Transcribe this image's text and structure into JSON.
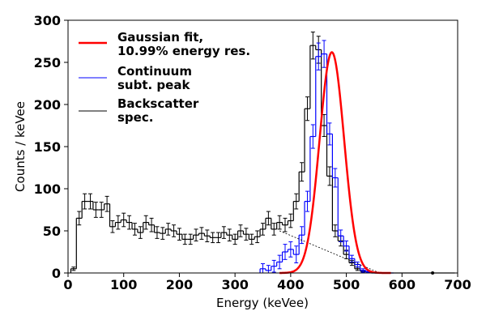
{
  "chart_data": {
    "type": "line",
    "xlabel": "Energy (keVee)",
    "ylabel": "Counts / keVee",
    "xlim": [
      0,
      700
    ],
    "ylim": [
      0,
      300
    ],
    "x_ticks": [
      0,
      100,
      200,
      300,
      400,
      500,
      600,
      700
    ],
    "y_ticks": [
      0,
      50,
      100,
      150,
      200,
      250,
      300
    ],
    "x_tick_labels": [
      "0",
      "100",
      "200",
      "300",
      "400",
      "500",
      "600",
      "700"
    ],
    "y_tick_labels": [
      "0",
      "50",
      "100",
      "150",
      "200",
      "250",
      "300"
    ],
    "grid": false,
    "legend_position": "top-left",
    "series": [
      {
        "name": "Backscatter spec.",
        "style": "step-errorbar",
        "color": "#000000",
        "bin_width": 10,
        "x": [
          10,
          20,
          30,
          40,
          50,
          60,
          70,
          80,
          90,
          100,
          110,
          120,
          130,
          140,
          150,
          160,
          170,
          180,
          190,
          200,
          210,
          220,
          230,
          240,
          250,
          260,
          270,
          280,
          290,
          300,
          310,
          320,
          330,
          340,
          350,
          360,
          370,
          380,
          390,
          400,
          410,
          420,
          430,
          440,
          450,
          460,
          470,
          480,
          490,
          500,
          510,
          520,
          530,
          540,
          550,
          560,
          570,
          580,
          590,
          600,
          610,
          620,
          630,
          640,
          650,
          660,
          670,
          680,
          690
        ],
        "y": [
          5,
          65,
          85,
          85,
          75,
          75,
          82,
          55,
          60,
          63,
          60,
          52,
          48,
          60,
          57,
          48,
          47,
          52,
          50,
          46,
          40,
          40,
          45,
          47,
          44,
          42,
          42,
          48,
          45,
          40,
          50,
          46,
          40,
          43,
          52,
          65,
          52,
          60,
          57,
          62,
          85,
          120,
          195,
          270,
          265,
          175,
          115,
          50,
          38,
          22,
          12,
          5,
          2,
          1,
          0,
          0,
          0,
          0,
          0,
          0,
          0,
          0,
          0,
          0,
          0,
          0,
          0,
          0,
          0
        ],
        "errors": [
          2,
          8,
          9,
          9,
          9,
          9,
          9,
          7,
          8,
          8,
          8,
          7,
          7,
          8,
          8,
          7,
          7,
          7,
          7,
          7,
          6,
          6,
          7,
          7,
          7,
          6,
          6,
          7,
          7,
          6,
          7,
          7,
          6,
          7,
          7,
          8,
          7,
          8,
          8,
          8,
          9,
          11,
          14,
          16,
          16,
          13,
          11,
          7,
          6,
          5,
          3,
          2,
          1,
          1,
          0,
          0,
          0,
          0,
          0,
          0,
          0,
          0,
          0,
          0,
          0,
          0,
          0,
          0,
          0
        ]
      },
      {
        "name": "Continuum subt. peak",
        "style": "step-errorbar",
        "color": "#0000ff",
        "bin_width": 10,
        "x": [
          350,
          360,
          370,
          380,
          390,
          400,
          410,
          420,
          430,
          440,
          450,
          460,
          470,
          480,
          490,
          500,
          510,
          520,
          530,
          540,
          550,
          560,
          570,
          580
        ],
        "y": [
          5,
          3,
          8,
          13,
          25,
          28,
          22,
          45,
          85,
          162,
          257,
          260,
          165,
          113,
          44,
          32,
          17,
          10,
          3,
          1,
          0,
          0,
          0,
          0
        ],
        "errors": [
          6,
          6,
          7,
          8,
          9,
          9,
          10,
          10,
          12,
          14,
          16,
          16,
          13,
          11,
          7,
          6,
          4,
          3,
          2,
          1,
          0,
          0,
          0,
          0
        ]
      },
      {
        "name": "Gaussian fit, 10.99% energy res.",
        "style": "curve",
        "color": "#ff0000",
        "mean": 474,
        "sigma": 22,
        "amplitude": 262,
        "x_range": [
          380,
          580
        ]
      },
      {
        "name": "continuum baseline",
        "style": "dotted-line",
        "color": "#000000",
        "x": [
          380,
          560
        ],
        "y": [
          50,
          0
        ]
      }
    ],
    "legend_entries": [
      {
        "line1": "Gaussian fit,",
        "line2": "10.99% energy res.",
        "color": "#ff0000",
        "width": 2.5
      },
      {
        "line1": "Continuum",
        "line2": "subt. peak",
        "color": "#0000ff",
        "width": 1
      },
      {
        "line1": "Backscatter",
        "line2": "spec.",
        "color": "#000000",
        "width": 1
      }
    ],
    "extra_points": [
      {
        "x": 655,
        "y": 0
      }
    ]
  }
}
